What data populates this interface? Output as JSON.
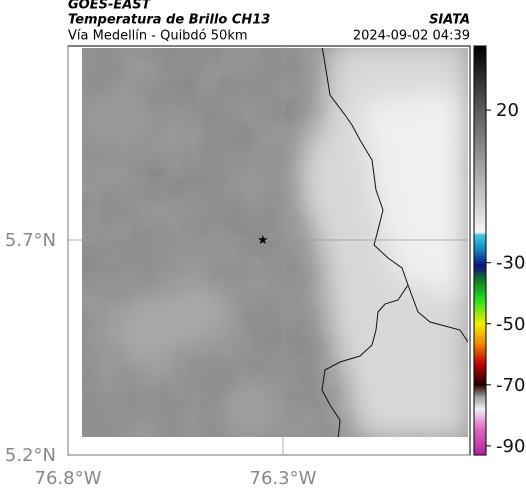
{
  "header": {
    "title": "GOES-EAST",
    "subtitle": "Temperatura de Brillo CH13",
    "route": "Vía Medellín - Quibdó 50km",
    "source": "SIATA",
    "timestamp": "2024-09-02 04:39"
  },
  "map": {
    "xlim": [
      -76.8,
      -75.865
    ],
    "ylim": [
      5.2,
      6.151
    ],
    "xticks": [
      {
        "value": -76.8,
        "label": "76.8°W"
      },
      {
        "value": -76.3,
        "label": "76.3°W"
      }
    ],
    "yticks": [
      {
        "value": 5.7,
        "label": "5.7°N"
      },
      {
        "value": 5.2,
        "label": "5.2°N"
      }
    ],
    "grid": true,
    "marker": {
      "lon": -76.347,
      "lat": 5.7
    }
  },
  "colorbar": {
    "lim": [
      -93,
      41
    ],
    "ticks": [
      20,
      -30,
      -50,
      -70,
      -90
    ],
    "stops": [
      {
        "value": 41,
        "color": "#000000"
      },
      {
        "value": 20,
        "color": "#5a5a5a"
      },
      {
        "value": -20,
        "color": "#f4f4f4"
      },
      {
        "value": -21,
        "color": "#40c8e0"
      },
      {
        "value": -26,
        "color": "#1080c0"
      },
      {
        "value": -31,
        "color": "#101080"
      },
      {
        "value": -36,
        "color": "#108020"
      },
      {
        "value": -42,
        "color": "#20e020"
      },
      {
        "value": -50,
        "color": "#f0f000"
      },
      {
        "value": -57,
        "color": "#f08000"
      },
      {
        "value": -63,
        "color": "#c00000"
      },
      {
        "value": -70,
        "color": "#200000"
      },
      {
        "value": -74,
        "color": "#a0a0a0"
      },
      {
        "value": -78,
        "color": "#f0f0f0"
      },
      {
        "value": -84,
        "color": "#e070c0"
      },
      {
        "value": -93,
        "color": "#b020a0"
      }
    ]
  }
}
